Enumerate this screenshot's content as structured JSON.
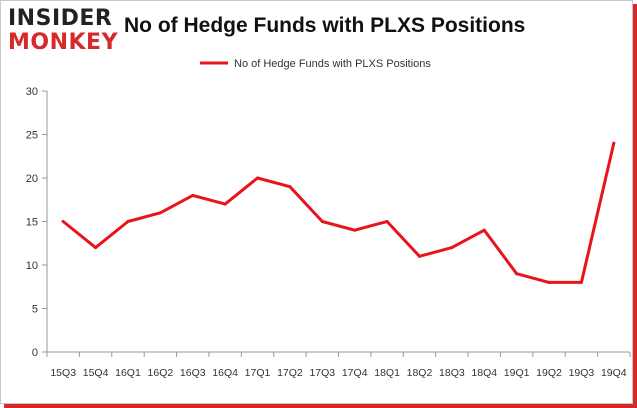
{
  "logo": {
    "line1": "INSIDER",
    "line2": "MONKEY"
  },
  "chart_data": {
    "type": "line",
    "title": "No of Hedge Funds with PLXS Positions",
    "xlabel": "",
    "ylabel": "",
    "categories": [
      "15Q3",
      "15Q4",
      "16Q1",
      "16Q2",
      "16Q3",
      "16Q4",
      "17Q1",
      "17Q2",
      "17Q3",
      "17Q4",
      "18Q1",
      "18Q2",
      "18Q3",
      "18Q4",
      "19Q1",
      "19Q2",
      "19Q3",
      "19Q4"
    ],
    "series": [
      {
        "name": "No of Hedge Funds with PLXS Positions",
        "values": [
          15,
          12,
          15,
          16,
          18,
          17,
          20,
          19,
          15,
          14,
          15,
          11,
          12,
          14,
          9,
          8,
          8,
          24
        ],
        "color": "#e8141c"
      }
    ],
    "ylim": [
      0,
      30
    ],
    "yticks": [
      0,
      5,
      10,
      15,
      20,
      25,
      30
    ],
    "grid": false,
    "legend": "top-center"
  }
}
